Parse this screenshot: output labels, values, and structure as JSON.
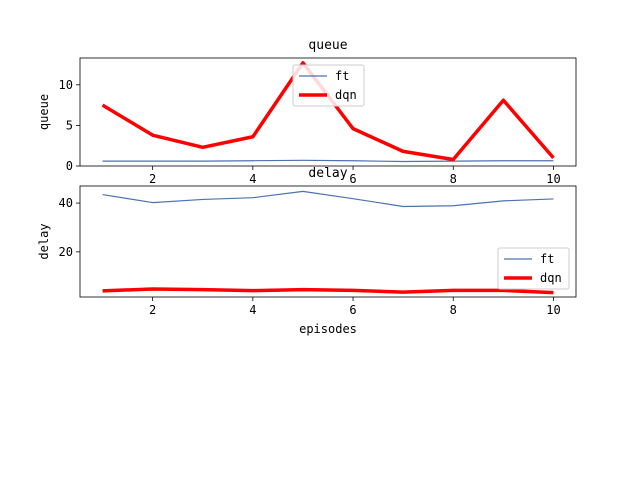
{
  "chart_data": [
    {
      "type": "line",
      "title": "queue",
      "xlabel": "",
      "ylabel": "queue",
      "x": [
        1,
        2,
        3,
        4,
        5,
        6,
        7,
        8,
        9,
        10
      ],
      "xlim": [
        0.55,
        10.45
      ],
      "ylim": [
        0,
        13.3
      ],
      "xticks": [
        2,
        4,
        6,
        8,
        10
      ],
      "yticks": [
        0,
        5,
        10
      ],
      "legend": "upper-center",
      "grid": false,
      "series": [
        {
          "name": "ft",
          "color": "#4c72b0",
          "style": "thin",
          "values": [
            0.6,
            0.6,
            0.6,
            0.65,
            0.7,
            0.65,
            0.55,
            0.6,
            0.65,
            0.65
          ]
        },
        {
          "name": "dqn",
          "color": "#ff0000",
          "style": "thick",
          "values": [
            7.5,
            3.8,
            2.3,
            3.6,
            12.7,
            4.6,
            1.8,
            0.8,
            8.1,
            1.0
          ]
        }
      ]
    },
    {
      "type": "line",
      "title": "delay",
      "xlabel": "episodes",
      "ylabel": "delay",
      "x": [
        1,
        2,
        3,
        4,
        5,
        6,
        7,
        8,
        9,
        10
      ],
      "xlim": [
        0.55,
        10.45
      ],
      "ylim": [
        1.5,
        47
      ],
      "xticks": [
        2,
        4,
        6,
        8,
        10
      ],
      "yticks": [
        20,
        40
      ],
      "legend": "center-right",
      "grid": false,
      "series": [
        {
          "name": "ft",
          "color": "#4c72b0",
          "style": "thin",
          "values": [
            43.5,
            40.2,
            41.5,
            42.2,
            44.8,
            41.8,
            38.6,
            38.9,
            40.9,
            41.7
          ]
        },
        {
          "name": "dqn",
          "color": "#ff0000",
          "style": "thick",
          "values": [
            4.0,
            4.8,
            4.5,
            4.1,
            4.5,
            4.2,
            3.5,
            4.2,
            4.2,
            3.3
          ]
        }
      ]
    }
  ]
}
